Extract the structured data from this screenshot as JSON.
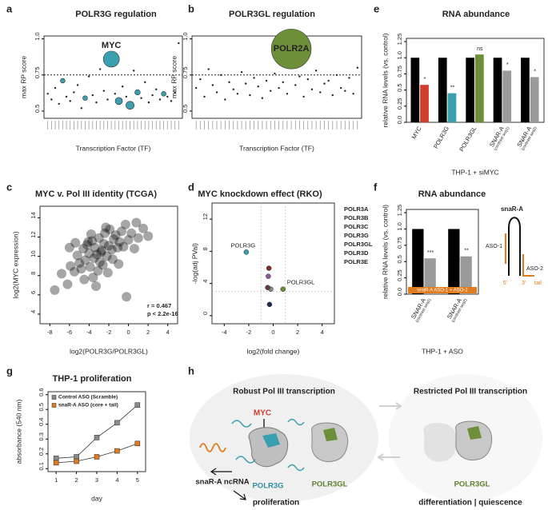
{
  "chart_data": [
    {
      "panel": "a",
      "type": "bubble",
      "title": "POLR3G regulation",
      "xlabel": "Transcription Factor (TF)",
      "ylabel": "max RP score",
      "x": [
        1,
        2,
        3,
        4,
        5,
        6,
        7,
        8,
        9,
        10,
        11,
        12,
        13,
        14,
        15,
        16,
        17,
        18,
        19,
        20,
        21,
        22,
        23,
        24,
        25,
        26,
        27,
        28,
        29,
        30,
        31,
        32,
        33,
        34,
        35,
        36
      ],
      "values": [
        0.62,
        0.58,
        0.66,
        0.55,
        0.71,
        0.6,
        0.57,
        0.63,
        0.68,
        0.52,
        0.59,
        0.74,
        0.61,
        0.56,
        0.79,
        0.64,
        0.58,
        0.86,
        0.62,
        0.57,
        0.67,
        0.6,
        0.54,
        0.78,
        0.63,
        0.59,
        0.7,
        0.56,
        0.61,
        0.65,
        0.58,
        0.62,
        0.6,
        0.57,
        0.63,
        0.97
      ],
      "sizes": [
        1,
        1,
        1,
        1,
        6,
        1,
        1,
        1,
        1,
        1,
        6,
        1,
        1,
        1,
        1,
        1,
        1,
        70,
        1,
        14,
        1,
        1,
        18,
        1,
        8,
        1,
        1,
        1,
        1,
        1,
        1,
        6,
        1,
        1,
        1,
        1
      ],
      "colors": [
        "#222",
        "#222",
        "#222",
        "#222",
        "#3a9fae",
        "#222",
        "#222",
        "#222",
        "#222",
        "#222",
        "#3a9fae",
        "#222",
        "#222",
        "#222",
        "#222",
        "#222",
        "#222",
        "#3a9fae",
        "#222",
        "#3a9fae",
        "#222",
        "#222",
        "#3a9fae",
        "#222",
        "#3a9fae",
        "#222",
        "#222",
        "#222",
        "#222",
        "#222",
        "#222",
        "#3a9fae",
        "#222",
        "#222",
        "#222",
        "#222"
      ],
      "xlim": [
        0,
        37
      ],
      "ylim": [
        0.45,
        1.02
      ],
      "yticks": [
        0.5,
        0.75,
        {
          "value": 1,
          "label": "1.0"
        }
      ],
      "threshold": 0.75,
      "annotation": "MYC",
      "annotation_color": "#d23c2a"
    },
    {
      "panel": "b",
      "type": "bubble",
      "title": "POLR3GL regulation",
      "xlabel": "Transcription Factor (TF)",
      "ylabel": "max RP score",
      "x": [
        1,
        2,
        3,
        4,
        5,
        6,
        7,
        8,
        9,
        10,
        11,
        12,
        13,
        14,
        15,
        16,
        17,
        18,
        19,
        20,
        21,
        22,
        23,
        24,
        25,
        26,
        27,
        28,
        29,
        30,
        31,
        32,
        33,
        34,
        35,
        36,
        37,
        38,
        39,
        40
      ],
      "values": [
        0.66,
        0.72,
        0.6,
        0.79,
        0.68,
        0.63,
        0.75,
        0.58,
        0.7,
        0.65,
        0.62,
        0.77,
        0.69,
        0.61,
        0.73,
        0.67,
        0.59,
        0.71,
        0.64,
        0.76,
        0.66,
        0.7,
        0.62,
        0.93,
        0.68,
        0.74,
        0.6,
        0.72,
        0.65,
        0.78,
        0.63,
        0.69,
        0.71,
        0.61,
        0.75,
        0.66,
        0.64,
        0.73,
        0.62,
        0.8
      ],
      "sizes": [
        1,
        1,
        1,
        1,
        1,
        1,
        1,
        1,
        1,
        1,
        1,
        1,
        1,
        1,
        1,
        1,
        1,
        1,
        1,
        1,
        1,
        1,
        1,
        430,
        1,
        1,
        1,
        1,
        1,
        1,
        1,
        1,
        1,
        1,
        1,
        1,
        1,
        1,
        1,
        1
      ],
      "colors": [
        "#222",
        "#222",
        "#222",
        "#222",
        "#222",
        "#222",
        "#222",
        "#222",
        "#222",
        "#222",
        "#222",
        "#222",
        "#222",
        "#222",
        "#222",
        "#222",
        "#222",
        "#222",
        "#222",
        "#222",
        "#222",
        "#222",
        "#222",
        "#6e8f3a",
        "#222",
        "#222",
        "#222",
        "#222",
        "#222",
        "#222",
        "#222",
        "#222",
        "#222",
        "#222",
        "#222",
        "#222",
        "#222",
        "#222",
        "#222",
        "#222"
      ],
      "xlim": [
        0,
        41
      ],
      "ylim": [
        0.45,
        1.02
      ],
      "yticks": [
        0.5,
        0.75,
        {
          "value": 1,
          "label": "1.0"
        }
      ],
      "threshold": 0.75,
      "annotation": "POLR2A",
      "annotation_color": "#1f2a10"
    },
    {
      "panel": "e",
      "type": "bar",
      "title": "RNA abundance",
      "ylabel": "relative RNA levels (vs. control)",
      "xlabel": "THP-1 + siMYC",
      "categories": [
        "MYC",
        "POLR3G",
        "POLR3GL",
        "SNAR-A",
        "SNAR-A"
      ],
      "sublabels": [
        null,
        null,
        null,
        "(contrast seq1)",
        "(contrast seq2)"
      ],
      "series": [
        {
          "color": "#000000",
          "values": [
            1,
            1,
            1,
            1,
            1
          ]
        },
        {
          "colors": [
            "#d23c2a",
            "#3a9fae",
            "#6e8f3a",
            "#9a9a9a",
            "#9a9a9a"
          ],
          "values": [
            0.58,
            0.45,
            1.05,
            0.8,
            0.7
          ],
          "significance": [
            "*",
            "**",
            "ns",
            "*",
            "*"
          ]
        }
      ],
      "ylim": [
        0,
        1.3
      ],
      "yticks": [
        {
          "value": 0,
          "label": "0.0"
        },
        0.25,
        0.5,
        0.75,
        {
          "value": 1,
          "label": "1.0"
        },
        1.25
      ]
    },
    {
      "panel": "c",
      "type": "scatter",
      "title": "MYC v. Pol III identity (TCGA)",
      "xlabel": "log2(POLR3G/POLR3GL)",
      "ylabel": "log2(MYC expression)",
      "x": [
        -7.5,
        -6.8,
        -6.2,
        -5.9,
        -5.5,
        -5.2,
        -5,
        -4.8,
        -4.6,
        -4.4,
        -4.2,
        -4,
        -3.9,
        -3.7,
        -3.5,
        -3.4,
        -3.2,
        -3,
        -2.9,
        -2.7,
        -2.5,
        -2.4,
        -2.2,
        -2,
        -1.9,
        -1.7,
        -1.5,
        -1.3,
        -1.1,
        -0.9,
        -0.7,
        -0.5,
        -0.3,
        0,
        0.3,
        0.6,
        1,
        1.5,
        2,
        -6,
        -4.5,
        -3.8,
        -3.1,
        -2.6,
        -2.1,
        -1.6,
        -4.1,
        -3.3,
        -2.3,
        -1,
        -5.4,
        -0.2,
        0.8,
        -3.6,
        -2.8
      ],
      "values": [
        6.5,
        8.2,
        7.1,
        9,
        8.4,
        10.1,
        9.3,
        8.7,
        10.8,
        9.6,
        11.2,
        10.3,
        8.9,
        11.6,
        9.8,
        10.9,
        10.2,
        11.9,
        9.4,
        10.6,
        11.3,
        12.4,
        10,
        11.1,
        12.8,
        10.7,
        11.8,
        12.2,
        10.9,
        11.5,
        12.6,
        11,
        13.3,
        11.7,
        12.4,
        10.8,
        11.9,
        12.9,
        12.1,
        10.9,
        7.6,
        12.3,
        8.5,
        9.1,
        8.3,
        9.7,
        11.5,
        6.9,
        13,
        9.2,
        11.4,
        5.8,
        13.5,
        7.8,
        10.4
      ],
      "color": "#000000",
      "stats": [
        "r = 0.467",
        "p < 2.2e-16"
      ],
      "xlim": [
        -9,
        5
      ],
      "xticks": [
        -8,
        -6,
        -4,
        -2,
        0,
        2,
        4
      ],
      "ylim": [
        3,
        15.2
      ],
      "yticks": [
        4,
        6,
        8,
        10,
        12,
        14
      ]
    },
    {
      "panel": "d",
      "type": "scatter",
      "title": "MYC knockdown effect (RKO)",
      "xlabel": "log2(fold change)",
      "ylabel": "-log(adj PVal)",
      "series": [
        {
          "name": "POLR3A",
          "color": "#8b2a2a",
          "x": [
            -0.35
          ],
          "values": [
            5.9
          ],
          "show_label": false
        },
        {
          "name": "POLR3B",
          "color": "#8a8a8a",
          "x": [
            -0.2
          ],
          "values": [
            3.3
          ],
          "show_label": false
        },
        {
          "name": "POLR3C",
          "color": "#1f2f5c",
          "x": [
            -0.3
          ],
          "values": [
            1.4
          ],
          "show_label": false
        },
        {
          "name": "POLR3G",
          "color": "#3a9fae",
          "x": [
            -2.2
          ],
          "values": [
            7.9
          ],
          "show_label": true
        },
        {
          "name": "POLR3GL",
          "color": "#6e8f3a",
          "x": [
            0.8
          ],
          "values": [
            3.3
          ],
          "show_label": true
        },
        {
          "name": "POLR3D",
          "color": "#8a5a9a",
          "x": [
            -0.4
          ],
          "values": [
            4.9
          ],
          "show_label": false
        },
        {
          "name": "POLR3E",
          "color": "#6b3a3a",
          "x": [
            -0.45
          ],
          "values": [
            3.5
          ],
          "show_label": false
        }
      ],
      "xguides": [
        -1,
        1
      ],
      "yguides": [
        3
      ],
      "xlim": [
        -5,
        5
      ],
      "xticks": [
        -4,
        -2,
        0,
        2,
        4
      ],
      "ylim": [
        -1,
        14
      ],
      "yticks": [
        0,
        4,
        8,
        12
      ]
    },
    {
      "panel": "f",
      "type": "bar",
      "title": "RNA abundance",
      "ylabel": "relative RNA levels (vs. control)",
      "xlabel": "THP-1 + ASO",
      "categories": [
        "SNAR-A",
        "SNAR-A"
      ],
      "sublabels": [
        "(contrast seq1)",
        "(contrast seq2)"
      ],
      "series": [
        {
          "color": "#000000",
          "values": [
            1,
            1
          ]
        },
        {
          "colors": [
            "#9a9a9a",
            "#9a9a9a"
          ],
          "values": [
            0.55,
            0.58
          ],
          "significance": [
            "***",
            "**"
          ]
        }
      ],
      "banner": "snaR-A ASO-1 + ASO-2",
      "banner_color": "#e07b1f",
      "ylim": [
        0,
        1.3
      ],
      "yticks": [
        {
          "value": 0,
          "label": "0.0"
        },
        0.25,
        0.5,
        0.75,
        {
          "value": 1,
          "label": "1.0"
        },
        1.25
      ]
    },
    {
      "panel": "g",
      "type": "line",
      "title": "THP-1 proliferation",
      "xlabel": "day",
      "ylabel": "absorbance (540 nm)",
      "x": [
        1,
        2,
        3,
        4,
        5
      ],
      "series": [
        {
          "name": "Control ASO (Scramble)",
          "color": "#8a8a8a",
          "values": [
            0.17,
            0.18,
            0.31,
            0.41,
            0.53
          ]
        },
        {
          "name": "snaR-A ASO (core + tail)",
          "color": "#e07b1f",
          "values": [
            0.14,
            0.15,
            0.18,
            0.22,
            0.27
          ]
        }
      ],
      "legend": "upper-left",
      "xlim": [
        0.6,
        5.4
      ],
      "xticks": [
        1,
        2,
        3,
        4,
        5
      ],
      "ylim": [
        0.08,
        0.62
      ],
      "yticks": [
        0.1,
        0.2,
        0.3,
        0.4,
        0.5,
        0.6
      ]
    }
  ],
  "inset": {
    "title": "snaR-A",
    "aso1": "ASO-1",
    "aso2": "ASO-2",
    "five": "5'",
    "three": "3'",
    "tail": "tail"
  },
  "diagram": {
    "panel": "h",
    "left_title": "Robust Pol III transcription",
    "right_title": "Restricted Pol III transcription",
    "myc": "MYC",
    "polr3g": "POLR3G",
    "polr3gl": "POLR3GL",
    "snar": "snaR-A ncRNA",
    "proliferation": "proliferation",
    "right_polr3gl": "POLR3GL",
    "right_outcome": "differentiation | quiescence"
  }
}
